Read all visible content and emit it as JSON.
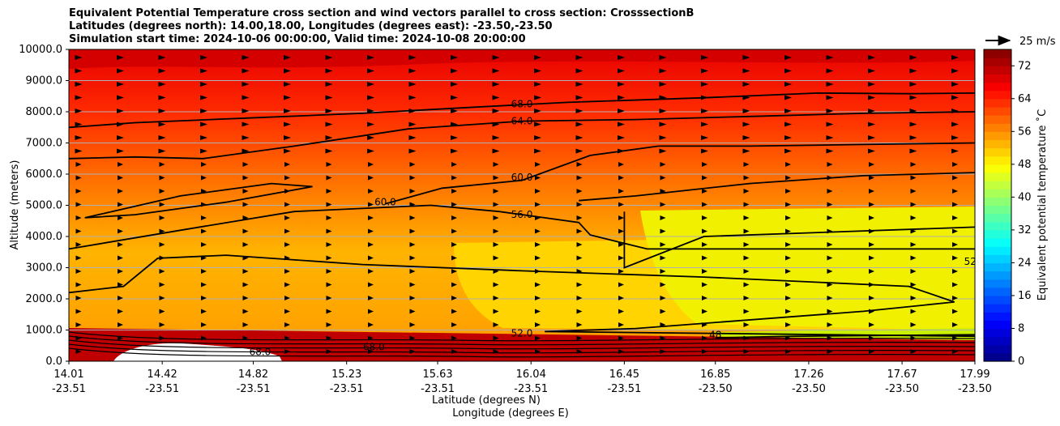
{
  "title_lines": [
    "Equivalent Potential Temperature cross section and wind vectors parallel to cross section: CrosssectionB",
    "Latitudes (degrees north): 14.00,18.00, Longitudes (degrees east): -23.50,-23.50",
    "Simulation start time: 2024-10-06 00:00:00, Valid time: 2024-10-08 20:00:00"
  ],
  "chart_data": {
    "type": "heatmap",
    "subtype": "filled contour cross section with contour lines and wind vectors",
    "ylabel": "Altitude (meters)",
    "xlabel_lines": [
      "Latitude (degrees N)",
      "Longitude (degrees E)"
    ],
    "ylim": [
      0,
      10000
    ],
    "y_ticks": [
      "0.0",
      "1000.0",
      "2000.0",
      "3000.0",
      "4000.0",
      "5000.0",
      "6000.0",
      "7000.0",
      "8000.0",
      "9000.0",
      "10000.0"
    ],
    "x_ticks": [
      {
        "lat": "14.01",
        "lon": "-23.51"
      },
      {
        "lat": "14.42",
        "lon": "-23.51"
      },
      {
        "lat": "14.82",
        "lon": "-23.51"
      },
      {
        "lat": "15.23",
        "lon": "-23.51"
      },
      {
        "lat": "15.63",
        "lon": "-23.51"
      },
      {
        "lat": "16.04",
        "lon": "-23.51"
      },
      {
        "lat": "16.45",
        "lon": "-23.51"
      },
      {
        "lat": "16.85",
        "lon": "-23.50"
      },
      {
        "lat": "17.26",
        "lon": "-23.50"
      },
      {
        "lat": "17.67",
        "lon": "-23.50"
      },
      {
        "lat": "17.99",
        "lon": "-23.50"
      }
    ],
    "grid": "horizontal",
    "colorbar": {
      "label": "Equivalent potential temperature ˚C",
      "ticks": [
        "0",
        "8",
        "16",
        "24",
        "32",
        "40",
        "48",
        "56",
        "64",
        "72"
      ],
      "range": [
        0,
        76
      ],
      "colormap": "jet"
    },
    "quiver_key": {
      "label": "25 m/s"
    },
    "contour_labels": [
      {
        "text": "68.0",
        "lat": 16.0,
        "alt": 8250
      },
      {
        "text": "64.0",
        "lat": 16.0,
        "alt": 7700
      },
      {
        "text": "60.0",
        "lat": 16.0,
        "alt": 5900
      },
      {
        "text": "60.0",
        "lat": 15.4,
        "alt": 5100
      },
      {
        "text": "56.0",
        "lat": 16.0,
        "alt": 4700
      },
      {
        "text": "52.0",
        "lat": 17.99,
        "alt": 3200
      },
      {
        "text": "48",
        "lat": 16.85,
        "alt": 850
      },
      {
        "text": "52.0",
        "lat": 16.0,
        "alt": 900
      },
      {
        "text": "68.0",
        "lat": 15.35,
        "alt": 450
      },
      {
        "text": "68.0",
        "lat": 14.85,
        "alt": 300
      }
    ],
    "contour_lines": [
      {
        "level": 68,
        "points": [
          [
            14.01,
            7500
          ],
          [
            14.3,
            7650
          ],
          [
            14.8,
            7800
          ],
          [
            15.3,
            7950
          ],
          [
            15.8,
            8150
          ],
          [
            16.2,
            8300
          ],
          [
            16.8,
            8450
          ],
          [
            17.3,
            8600
          ],
          [
            17.7,
            8580
          ],
          [
            17.99,
            8600
          ]
        ]
      },
      {
        "level": 64,
        "points": [
          [
            14.01,
            6500
          ],
          [
            14.3,
            6550
          ],
          [
            14.6,
            6500
          ],
          [
            15.0,
            6900
          ],
          [
            15.5,
            7450
          ],
          [
            16.0,
            7700
          ],
          [
            16.5,
            7750
          ],
          [
            17.0,
            7850
          ],
          [
            17.5,
            7950
          ],
          [
            17.99,
            8000
          ]
        ]
      },
      {
        "level": 60,
        "points": [
          [
            14.08,
            4600
          ],
          [
            14.5,
            5300
          ],
          [
            14.9,
            5700
          ],
          [
            15.08,
            5600
          ],
          [
            14.7,
            5100
          ],
          [
            14.3,
            4700
          ],
          [
            14.08,
            4600
          ]
        ]
      },
      {
        "level": 60,
        "points": [
          [
            15.4,
            5050
          ],
          [
            15.65,
            5550
          ],
          [
            16.0,
            5800
          ],
          [
            16.3,
            6600
          ],
          [
            16.6,
            6900
          ],
          [
            17.0,
            6900
          ],
          [
            17.5,
            6950
          ],
          [
            17.99,
            7000
          ]
        ]
      },
      {
        "level": 60,
        "points": [
          [
            16.25,
            5150
          ],
          [
            16.5,
            5300
          ],
          [
            17.0,
            5700
          ],
          [
            17.5,
            5950
          ],
          [
            17.99,
            6050
          ]
        ]
      },
      {
        "level": 56,
        "points": [
          [
            14.01,
            3600
          ],
          [
            14.5,
            4200
          ],
          [
            15.0,
            4800
          ],
          [
            15.6,
            5000
          ],
          [
            15.9,
            4800
          ],
          [
            16.1,
            4600
          ],
          [
            16.25,
            4450
          ],
          [
            16.3,
            4050
          ],
          [
            16.55,
            3600
          ],
          [
            17.99,
            3600
          ]
        ]
      },
      {
        "level": 52,
        "points": [
          [
            14.01,
            2200
          ],
          [
            14.25,
            2400
          ],
          [
            14.4,
            3300
          ],
          [
            14.7,
            3400
          ],
          [
            15.3,
            3100
          ],
          [
            16.0,
            2900
          ],
          [
            16.8,
            2700
          ],
          [
            17.7,
            2400
          ],
          [
            17.9,
            1900
          ],
          [
            17.5,
            1600
          ],
          [
            16.5,
            1050
          ],
          [
            16.1,
            950
          ],
          [
            17.99,
            800
          ]
        ]
      },
      {
        "level": 52,
        "points": [
          [
            16.45,
            4800
          ],
          [
            16.45,
            3000
          ],
          [
            16.8,
            4000
          ],
          [
            17.99,
            4300
          ]
        ]
      },
      {
        "level": 48,
        "points": [
          [
            16.85,
            750
          ],
          [
            17.2,
            800
          ],
          [
            17.99,
            850
          ]
        ]
      }
    ],
    "vector_direction": "rightward (positive along section)",
    "missing_data_region": "terrain below ~500 m between latitudes 14.2 and 14.95"
  }
}
